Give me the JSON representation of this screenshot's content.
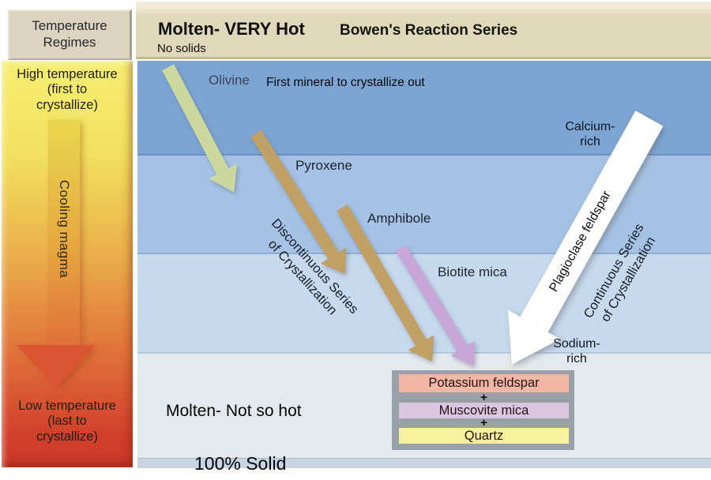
{
  "title": "Bowen's Reaction Series",
  "header": {
    "temperature_regimes_lines": [
      "Temperature",
      "Regimes"
    ],
    "molten_very_hot": "Molten- VERY Hot",
    "no_solids": "No solids"
  },
  "temperature_bar": {
    "high_lines": [
      "High temperature",
      "(first to",
      "crystallize)"
    ],
    "cooling_label": "Cooling magma",
    "low_lines": [
      "Low temperature",
      "(last to",
      "crystallize)"
    ]
  },
  "discontinuous_series": {
    "minerals": [
      "Olivine",
      "Pyroxene",
      "Amphibole",
      "Biotite mica"
    ],
    "first_mineral_note": "First mineral to crystallize out",
    "label_lines": [
      "Discontinuous Series",
      "of Crystallization"
    ]
  },
  "continuous_series": {
    "arrow_label": "Plagioclase feldspar",
    "label_lines": [
      "Continuous Series",
      "of Crystallization"
    ],
    "calcium_lines": [
      "Calcium-",
      "rich"
    ],
    "sodium_lines": [
      "Sodium-",
      "rich"
    ]
  },
  "final_minerals": {
    "items": [
      "Potassium feldspar",
      "Muscovite mica",
      "Quartz"
    ],
    "plus": "+"
  },
  "bottom": {
    "molten_not_so_hot": "Molten- Not so hot",
    "solid": "100% Solid"
  },
  "colors": {
    "header_beige": "#e0d8ba",
    "band_1": "#7da5d3",
    "band_2": "#a5c2e4",
    "band_3": "#c7d9ed",
    "band_4": "#e4e9ed",
    "bottom_strip": "#c6d5e1",
    "bar_top_yellow": "#f6ee74",
    "bar_bottom_red": "#cc382a",
    "olivine_arrow": "#cbd79d",
    "pyroxene_amphibole_arrow": "#c0a065",
    "biotite_arrow": "#c8a7d8",
    "plagioclase_arrow": "#ffffff",
    "potassium_feldspar_box": "#f3b5a5",
    "muscovite_box": "#d9c7e2",
    "quartz_box": "#f8f19d",
    "box_backing_gray": "#99a1a8"
  }
}
